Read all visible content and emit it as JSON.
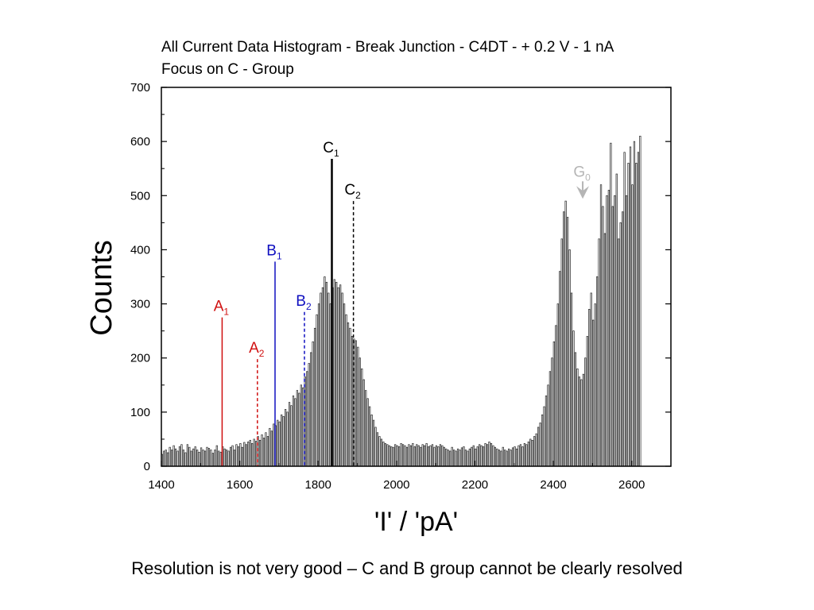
{
  "chart_data": {
    "type": "bar",
    "title": [
      "All Current Data Histogram - Break Junction - C4DT - + 0.2 V - 1 nA",
      "Focus on C - Group"
    ],
    "xlabel": "'I' / 'pA'",
    "ylabel": "Counts",
    "xlim": [
      1400,
      2700
    ],
    "ylim": [
      0,
      700
    ],
    "xticks": [
      1400,
      1600,
      1800,
      2000,
      2200,
      2400,
      2600
    ],
    "yticks": [
      0,
      100,
      200,
      300,
      400,
      500,
      600,
      700
    ],
    "bin_width": 5,
    "bin_start": 1400,
    "bar_color": "#222222",
    "values": [
      22,
      28,
      30,
      25,
      35,
      30,
      38,
      32,
      28,
      36,
      40,
      30,
      25,
      40,
      35,
      28,
      32,
      36,
      30,
      26,
      34,
      30,
      28,
      35,
      33,
      30,
      24,
      30,
      38,
      28,
      26,
      36,
      32,
      30,
      28,
      35,
      38,
      30,
      40,
      36,
      42,
      35,
      44,
      40,
      45,
      48,
      42,
      50,
      46,
      55,
      48,
      58,
      52,
      62,
      55,
      70,
      65,
      78,
      75,
      85,
      82,
      95,
      92,
      105,
      100,
      118,
      112,
      130,
      125,
      140,
      135,
      150,
      145,
      165,
      175,
      190,
      210,
      230,
      255,
      280,
      300,
      320,
      330,
      350,
      340,
      320,
      300,
      330,
      345,
      340,
      330,
      335,
      320,
      300,
      280,
      265,
      255,
      240,
      235,
      232,
      220,
      200,
      180,
      160,
      140,
      125,
      110,
      95,
      85,
      72,
      62,
      55,
      50,
      45,
      42,
      40,
      38,
      36,
      35,
      40,
      38,
      36,
      42,
      40,
      38,
      35,
      40,
      38,
      42,
      36,
      40,
      38,
      35,
      40,
      38,
      42,
      36,
      38,
      40,
      35,
      38,
      36,
      40,
      38,
      35,
      32,
      30,
      28,
      35,
      30,
      28,
      32,
      30,
      34,
      36,
      30,
      28,
      32,
      35,
      38,
      32,
      36,
      40,
      38,
      36,
      42,
      40,
      45,
      42,
      38,
      35,
      32,
      30,
      28,
      35,
      30,
      28,
      32,
      30,
      34,
      36,
      32,
      38,
      40,
      36,
      42,
      40,
      45,
      50,
      48,
      55,
      60,
      72,
      80,
      95,
      110,
      130,
      150,
      175,
      200,
      230,
      260,
      300,
      360,
      420,
      470,
      490,
      460,
      400,
      320,
      250,
      210,
      180,
      165,
      160,
      170,
      200,
      240,
      290,
      320,
      270,
      300,
      350,
      420,
      520,
      480,
      430,
      500,
      510,
      597,
      480,
      500,
      540,
      420,
      450,
      470,
      580,
      500,
      560,
      590,
      520,
      600,
      560,
      580,
      610
    ]
  },
  "annotations": [
    {
      "id": "A1",
      "base": "A",
      "sub": "1",
      "x": 1555,
      "top": 275,
      "color": "#d01010",
      "style": "solid"
    },
    {
      "id": "A2",
      "base": "A",
      "sub": "2",
      "x": 1645,
      "top": 198,
      "color": "#d01010",
      "style": "dashed"
    },
    {
      "id": "B1",
      "base": "B",
      "sub": "1",
      "x": 1690,
      "top": 378,
      "color": "#1010c0",
      "style": "solid"
    },
    {
      "id": "B2",
      "base": "B",
      "sub": "2",
      "x": 1765,
      "top": 285,
      "color": "#1010c0",
      "style": "dashed"
    },
    {
      "id": "C1",
      "base": "C",
      "sub": "1",
      "x": 1835,
      "top": 568,
      "color": "#000000",
      "style": "solid-thick"
    },
    {
      "id": "C2",
      "base": "C",
      "sub": "2",
      "x": 1890,
      "top": 490,
      "color": "#000000",
      "style": "dashed"
    },
    {
      "id": "G0",
      "base": "G",
      "sub": "0",
      "x": 2475,
      "top": 500,
      "color": "#b5b5b5",
      "style": "arrow"
    }
  ],
  "caption": "Resolution is not very good – C and B group cannot be clearly resolved"
}
